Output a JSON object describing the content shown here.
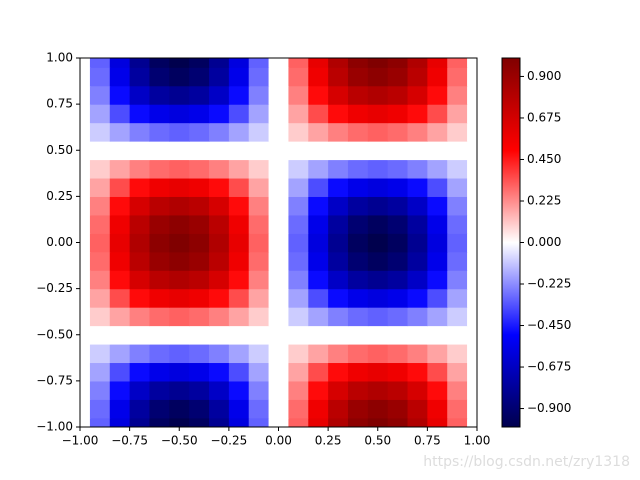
{
  "chart_data": {
    "type": "contour",
    "colormap": "seismic",
    "watermark": "https://blog.csdn.net/zry1318",
    "x": [
      -1,
      -0.9,
      -0.8,
      -0.7,
      -0.6,
      -0.5,
      -0.4,
      -0.3,
      -0.2,
      -0.1,
      0,
      0.1,
      0.2,
      0.3,
      0.4,
      0.5,
      0.6,
      0.7,
      0.8,
      0.9,
      1
    ],
    "y": [
      -1,
      -0.9,
      -0.8,
      -0.7,
      -0.6,
      -0.5,
      -0.4,
      -0.3,
      -0.2,
      -0.1,
      0,
      0.1,
      0.2,
      0.3,
      0.4,
      0.5,
      0.6,
      0.7,
      0.8,
      0.9,
      1
    ],
    "z": [
      [
        0,
        -0.31,
        -0.59,
        -0.81,
        -0.95,
        -1,
        -0.95,
        -0.81,
        -0.59,
        -0.31,
        0,
        0.31,
        0.59,
        0.81,
        0.95,
        1,
        0.95,
        0.81,
        0.59,
        0.31,
        0
      ],
      [
        0,
        -0.29,
        -0.56,
        -0.77,
        -0.9,
        -0.95,
        -0.9,
        -0.77,
        -0.56,
        -0.29,
        0,
        0.29,
        0.56,
        0.77,
        0.9,
        0.95,
        0.9,
        0.77,
        0.56,
        0.29,
        0
      ],
      [
        0,
        -0.25,
        -0.48,
        -0.66,
        -0.77,
        -0.81,
        -0.77,
        -0.66,
        -0.48,
        -0.25,
        0,
        0.25,
        0.48,
        0.66,
        0.77,
        0.81,
        0.77,
        0.66,
        0.48,
        0.25,
        0
      ],
      [
        0,
        -0.18,
        -0.35,
        -0.48,
        -0.56,
        -0.59,
        -0.56,
        -0.48,
        -0.35,
        -0.18,
        0,
        0.18,
        0.35,
        0.48,
        0.56,
        0.59,
        0.56,
        0.48,
        0.35,
        0.18,
        0
      ],
      [
        0,
        -0.1,
        -0.18,
        -0.25,
        -0.29,
        -0.31,
        -0.29,
        -0.25,
        -0.18,
        -0.1,
        0,
        0.1,
        0.18,
        0.25,
        0.29,
        0.31,
        0.29,
        0.25,
        0.18,
        0.1,
        0
      ],
      [
        0,
        0,
        0,
        0,
        0,
        0,
        0,
        0,
        0,
        0,
        0,
        0,
        0,
        0,
        0,
        0,
        0,
        0,
        0,
        0,
        0
      ],
      [
        0,
        0.1,
        0.18,
        0.25,
        0.29,
        0.31,
        0.29,
        0.25,
        0.18,
        0.1,
        0,
        -0.1,
        -0.18,
        -0.25,
        -0.29,
        -0.31,
        -0.29,
        -0.25,
        -0.18,
        -0.1,
        0
      ],
      [
        0,
        0.18,
        0.35,
        0.48,
        0.56,
        0.59,
        0.56,
        0.48,
        0.35,
        0.18,
        0,
        -0.18,
        -0.35,
        -0.48,
        -0.56,
        -0.59,
        -0.56,
        -0.48,
        -0.35,
        -0.18,
        0
      ],
      [
        0,
        0.25,
        0.48,
        0.66,
        0.77,
        0.81,
        0.77,
        0.66,
        0.48,
        0.25,
        0,
        -0.25,
        -0.48,
        -0.66,
        -0.77,
        -0.81,
        -0.77,
        -0.66,
        -0.48,
        -0.25,
        0
      ],
      [
        0,
        0.29,
        0.56,
        0.77,
        0.9,
        0.95,
        0.9,
        0.77,
        0.56,
        0.29,
        0,
        -0.29,
        -0.56,
        -0.77,
        -0.9,
        -0.95,
        -0.9,
        -0.77,
        -0.56,
        -0.29,
        0
      ],
      [
        0,
        0.31,
        0.59,
        0.81,
        0.95,
        1,
        0.95,
        0.81,
        0.59,
        0.31,
        0,
        -0.31,
        -0.59,
        -0.81,
        -0.95,
        -1,
        -0.95,
        -0.81,
        -0.59,
        -0.31,
        0
      ],
      [
        0,
        0.29,
        0.56,
        0.77,
        0.9,
        0.95,
        0.9,
        0.77,
        0.56,
        0.29,
        0,
        -0.29,
        -0.56,
        -0.77,
        -0.9,
        -0.95,
        -0.9,
        -0.77,
        -0.56,
        -0.29,
        0
      ],
      [
        0,
        0.25,
        0.48,
        0.66,
        0.77,
        0.81,
        0.77,
        0.66,
        0.48,
        0.25,
        0,
        -0.25,
        -0.48,
        -0.66,
        -0.77,
        -0.81,
        -0.77,
        -0.66,
        -0.48,
        -0.25,
        0
      ],
      [
        0,
        0.18,
        0.35,
        0.48,
        0.56,
        0.59,
        0.56,
        0.48,
        0.35,
        0.18,
        0,
        -0.18,
        -0.35,
        -0.48,
        -0.56,
        -0.59,
        -0.56,
        -0.48,
        -0.35,
        -0.18,
        0
      ],
      [
        0,
        0.1,
        0.18,
        0.25,
        0.29,
        0.31,
        0.29,
        0.25,
        0.18,
        0.1,
        0,
        -0.1,
        -0.18,
        -0.25,
        -0.29,
        -0.31,
        -0.29,
        -0.25,
        -0.18,
        -0.1,
        0
      ],
      [
        0,
        0,
        0,
        0,
        0,
        0,
        0,
        0,
        0,
        0,
        0,
        0,
        0,
        0,
        0,
        0,
        0,
        0,
        0,
        0,
        0
      ],
      [
        0,
        -0.1,
        -0.18,
        -0.25,
        -0.29,
        -0.31,
        -0.29,
        -0.25,
        -0.18,
        -0.1,
        0,
        0.1,
        0.18,
        0.25,
        0.29,
        0.31,
        0.29,
        0.25,
        0.18,
        0.1,
        0
      ],
      [
        0,
        -0.18,
        -0.35,
        -0.48,
        -0.56,
        -0.59,
        -0.56,
        -0.48,
        -0.35,
        -0.18,
        0,
        0.18,
        0.35,
        0.48,
        0.56,
        0.59,
        0.56,
        0.48,
        0.35,
        0.18,
        0
      ],
      [
        0,
        -0.25,
        -0.48,
        -0.66,
        -0.77,
        -0.81,
        -0.77,
        -0.66,
        -0.48,
        -0.25,
        0,
        0.25,
        0.48,
        0.66,
        0.77,
        0.81,
        0.77,
        0.66,
        0.48,
        0.25,
        0
      ],
      [
        0,
        -0.29,
        -0.56,
        -0.77,
        -0.9,
        -0.95,
        -0.9,
        -0.77,
        -0.56,
        -0.29,
        0,
        0.29,
        0.56,
        0.77,
        0.9,
        0.95,
        0.9,
        0.77,
        0.56,
        0.29,
        0
      ],
      [
        0,
        -0.31,
        -0.59,
        -0.81,
        -0.95,
        -1,
        -0.95,
        -0.81,
        -0.59,
        -0.31,
        0,
        0.31,
        0.59,
        0.81,
        0.95,
        1,
        0.95,
        0.81,
        0.59,
        0.31,
        0
      ]
    ],
    "xlim": [
      -1,
      1
    ],
    "ylim": [
      -1,
      1
    ],
    "clim": [
      -1,
      1
    ],
    "xticks": [
      {
        "value": -1,
        "label": "−1.00"
      },
      {
        "value": -0.75,
        "label": "−0.75"
      },
      {
        "value": -0.5,
        "label": "−0.50"
      },
      {
        "value": -0.25,
        "label": "−0.25"
      },
      {
        "value": 0,
        "label": "0.00"
      },
      {
        "value": 0.25,
        "label": "0.25"
      },
      {
        "value": 0.5,
        "label": "0.50"
      },
      {
        "value": 0.75,
        "label": "0.75"
      },
      {
        "value": 1,
        "label": "1.00"
      }
    ],
    "yticks": [
      {
        "value": -1,
        "label": "−1.00"
      },
      {
        "value": -0.75,
        "label": "−0.75"
      },
      {
        "value": -0.5,
        "label": "−0.50"
      },
      {
        "value": -0.25,
        "label": "−0.25"
      },
      {
        "value": 0,
        "label": "0.00"
      },
      {
        "value": 0.25,
        "label": "0.25"
      },
      {
        "value": 0.5,
        "label": "0.50"
      },
      {
        "value": 0.75,
        "label": "0.75"
      },
      {
        "value": 1,
        "label": "1.00"
      }
    ],
    "cticks": [
      {
        "value": -0.9,
        "label": "−0.900"
      },
      {
        "value": -0.675,
        "label": "−0.675"
      },
      {
        "value": -0.45,
        "label": "−0.450"
      },
      {
        "value": -0.225,
        "label": "−0.225"
      },
      {
        "value": 0,
        "label": "0.000"
      },
      {
        "value": 0.225,
        "label": "0.225"
      },
      {
        "value": 0.45,
        "label": "0.450"
      },
      {
        "value": 0.675,
        "label": "0.675"
      },
      {
        "value": 0.9,
        "label": "0.900"
      }
    ]
  }
}
